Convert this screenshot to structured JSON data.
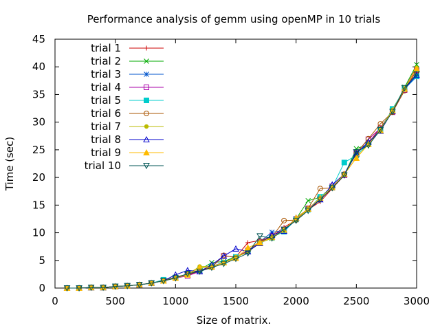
{
  "chart_data": {
    "type": "line",
    "title": "Performance analysis of gemm using openMP in 10 trials",
    "xlabel": "Size of matrix.",
    "ylabel": "Time (sec)",
    "xlim": [
      0,
      3000
    ],
    "ylim": [
      0,
      45
    ],
    "xticks": [
      0,
      500,
      1000,
      1500,
      2000,
      2500,
      3000
    ],
    "yticks": [
      0,
      5,
      10,
      15,
      20,
      25,
      30,
      35,
      40,
      45
    ],
    "legend_position": "top-left",
    "grid": false,
    "x": [
      100,
      200,
      300,
      400,
      500,
      600,
      700,
      800,
      900,
      1000,
      1100,
      1200,
      1300,
      1400,
      1500,
      1600,
      1700,
      1800,
      1900,
      2000,
      2100,
      2200,
      2300,
      2400,
      2500,
      2600,
      2700,
      2800,
      2900,
      3000
    ],
    "series": [
      {
        "name": "trial 1",
        "color": "#cc0000",
        "marker": "plus",
        "values": [
          0.0,
          0.0,
          0.1,
          0.1,
          0.3,
          0.4,
          0.6,
          0.9,
          1.3,
          1.8,
          2.4,
          3.0,
          3.8,
          4.6,
          5.6,
          8.2,
          8.6,
          9.3,
          11.0,
          12.3,
          14.2,
          15.6,
          18.0,
          20.4,
          24.5,
          26.2,
          29.0,
          32.0,
          36.0,
          40.0
        ]
      },
      {
        "name": "trial 2",
        "color": "#00aa00",
        "marker": "cross",
        "values": [
          0.0,
          0.0,
          0.1,
          0.1,
          0.3,
          0.4,
          0.6,
          0.9,
          1.3,
          1.9,
          2.5,
          3.3,
          4.6,
          4.8,
          5.7,
          6.6,
          8.2,
          9.0,
          10.6,
          12.5,
          15.8,
          16.4,
          18.4,
          20.4,
          25.2,
          26.0,
          28.6,
          32.0,
          36.3,
          40.4
        ]
      },
      {
        "name": "trial 3",
        "color": "#0055cc",
        "marker": "star",
        "values": [
          0.0,
          0.0,
          0.1,
          0.1,
          0.3,
          0.4,
          0.6,
          0.9,
          1.3,
          1.8,
          2.5,
          3.1,
          3.9,
          4.7,
          5.6,
          6.6,
          8.4,
          10.1,
          10.4,
          12.4,
          14.3,
          16.0,
          18.1,
          20.6,
          24.6,
          26.0,
          28.8,
          32.1,
          36.0,
          38.2
        ]
      },
      {
        "name": "trial 4",
        "color": "#aa00aa",
        "marker": "square",
        "values": [
          0.0,
          0.0,
          0.1,
          0.1,
          0.3,
          0.4,
          0.6,
          0.9,
          1.4,
          1.8,
          2.2,
          3.0,
          3.8,
          5.8,
          5.6,
          6.8,
          8.3,
          9.4,
          10.6,
          12.5,
          14.4,
          16.2,
          18.4,
          20.4,
          24.4,
          26.9,
          28.9,
          31.8,
          35.8,
          39.4
        ]
      },
      {
        "name": "trial 5",
        "color": "#00cccc",
        "marker": "filled-square",
        "values": [
          0.0,
          0.0,
          0.1,
          0.1,
          0.3,
          0.4,
          0.6,
          0.9,
          1.5,
          1.9,
          2.6,
          3.2,
          3.9,
          4.6,
          5.6,
          6.6,
          8.1,
          9.2,
          10.2,
          12.4,
          14.2,
          16.5,
          18.2,
          22.7,
          24.0,
          26.0,
          28.6,
          32.4,
          36.0,
          38.3
        ]
      },
      {
        "name": "trial 6",
        "color": "#aa5500",
        "marker": "circle",
        "values": [
          0.0,
          0.0,
          0.1,
          0.1,
          0.3,
          0.4,
          0.6,
          0.9,
          1.3,
          2.0,
          2.5,
          3.2,
          3.8,
          5.9,
          5.5,
          6.7,
          8.5,
          9.2,
          12.2,
          12.3,
          14.4,
          18.0,
          18.1,
          20.6,
          24.4,
          27.0,
          29.7,
          31.8,
          35.7,
          39.3
        ]
      },
      {
        "name": "trial 7",
        "color": "#bbbb00",
        "marker": "filled-circle",
        "values": [
          0.0,
          0.0,
          0.1,
          0.1,
          0.3,
          0.4,
          0.6,
          0.9,
          1.3,
          1.8,
          2.5,
          3.9,
          3.9,
          4.6,
          5.6,
          6.5,
          8.2,
          9.0,
          10.5,
          12.4,
          14.2,
          16.2,
          18.2,
          20.5,
          23.6,
          26.0,
          28.6,
          32.2,
          36.0,
          39.8
        ]
      },
      {
        "name": "trial 8",
        "color": "#0000cc",
        "marker": "triangle",
        "values": [
          0.0,
          0.0,
          0.1,
          0.1,
          0.3,
          0.4,
          0.6,
          0.9,
          1.3,
          2.4,
          3.2,
          3.0,
          4.2,
          5.8,
          7.1,
          6.6,
          8.1,
          9.6,
          10.3,
          12.7,
          14.3,
          16.0,
          18.7,
          20.6,
          24.3,
          26.4,
          28.4,
          32.0,
          36.0,
          38.5
        ]
      },
      {
        "name": "trial 9",
        "color": "#ffbb00",
        "marker": "filled-triangle",
        "values": [
          0.0,
          0.0,
          0.1,
          0.1,
          0.3,
          0.4,
          0.6,
          0.9,
          1.3,
          1.8,
          2.4,
          3.7,
          3.8,
          4.6,
          5.4,
          7.3,
          8.2,
          9.2,
          10.5,
          12.7,
          14.3,
          16.3,
          18.2,
          20.6,
          23.5,
          26.0,
          28.5,
          32.1,
          36.0,
          39.7
        ]
      },
      {
        "name": "trial 10",
        "color": "#005555",
        "marker": "inverted-triangle",
        "values": [
          0.0,
          0.0,
          0.1,
          0.1,
          0.3,
          0.4,
          0.6,
          0.9,
          1.3,
          1.8,
          2.6,
          3.0,
          3.7,
          4.4,
          5.3,
          6.3,
          9.4,
          9.0,
          10.6,
          12.2,
          14.0,
          16.0,
          18.1,
          20.4,
          24.6,
          25.8,
          28.6,
          31.9,
          36.2,
          38.7
        ]
      }
    ]
  }
}
